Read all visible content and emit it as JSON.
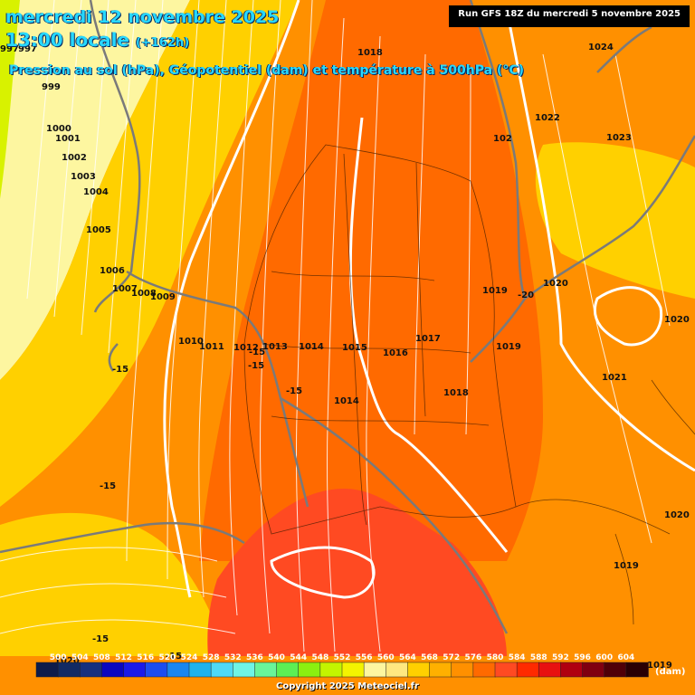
{
  "header": {
    "line1": "mercredi 12 novembre 2025",
    "line2_time": "13:00 locale",
    "line2_lead": "(+162h)",
    "line3": "Pression au sol (hPa), Géopotentiel (dam) et température à 500hPa (°C)",
    "run_info": "Run GFS 18Z du mercredi 5 novembre 2025"
  },
  "copyright": "Copyright 2025 Meteociel.fr",
  "legend": {
    "unit": "(dam)",
    "labels": [
      "500",
      "504",
      "508",
      "512",
      "516",
      "520",
      "524",
      "528",
      "532",
      "536",
      "540",
      "544",
      "548",
      "552",
      "556",
      "560",
      "564",
      "568",
      "572",
      "576",
      "580",
      "584",
      "588",
      "592",
      "596",
      "600",
      "604"
    ],
    "colors": [
      "#0e1c4a",
      "#112a63",
      "#16307e",
      "#0b07c0",
      "#1a1ae8",
      "#1c4df0",
      "#1a86ef",
      "#1fb2ec",
      "#4fd9f6",
      "#6ff4e6",
      "#69f59a",
      "#5cf054",
      "#8bf010",
      "#c3f500",
      "#f4f400",
      "#fdf6a0",
      "#ffe880",
      "#ffd000",
      "#ffb000",
      "#ff9000",
      "#ff6a00",
      "#ff4a22",
      "#ff2a00",
      "#e81010",
      "#b00010",
      "#800010",
      "#500008",
      "#2a0004"
    ]
  },
  "pressure_labels": [
    "997",
    "997",
    "999",
    "1000",
    "1001",
    "1002",
    "1003",
    "1004",
    "1005",
    "1006",
    "1007",
    "1008",
    "1009",
    "1010",
    "1011",
    "1012",
    "1013",
    "1014",
    "1014",
    "1015",
    "1016",
    "1017",
    "1018",
    "1018",
    "1019",
    "1019",
    "1019",
    "1019",
    "1020",
    "1020",
    "1020",
    "1020",
    "1021",
    "1022",
    "1023",
    "1024",
    "102"
  ],
  "temp_labels": [
    "-15",
    "-15",
    "-15",
    "-15",
    "-15",
    "-15",
    "-20",
    "-15"
  ],
  "colors": {
    "yellow": "#ffd400",
    "orange": "#ff9000",
    "dark_orange": "#ff6a00",
    "red": "#ff4a22"
  }
}
